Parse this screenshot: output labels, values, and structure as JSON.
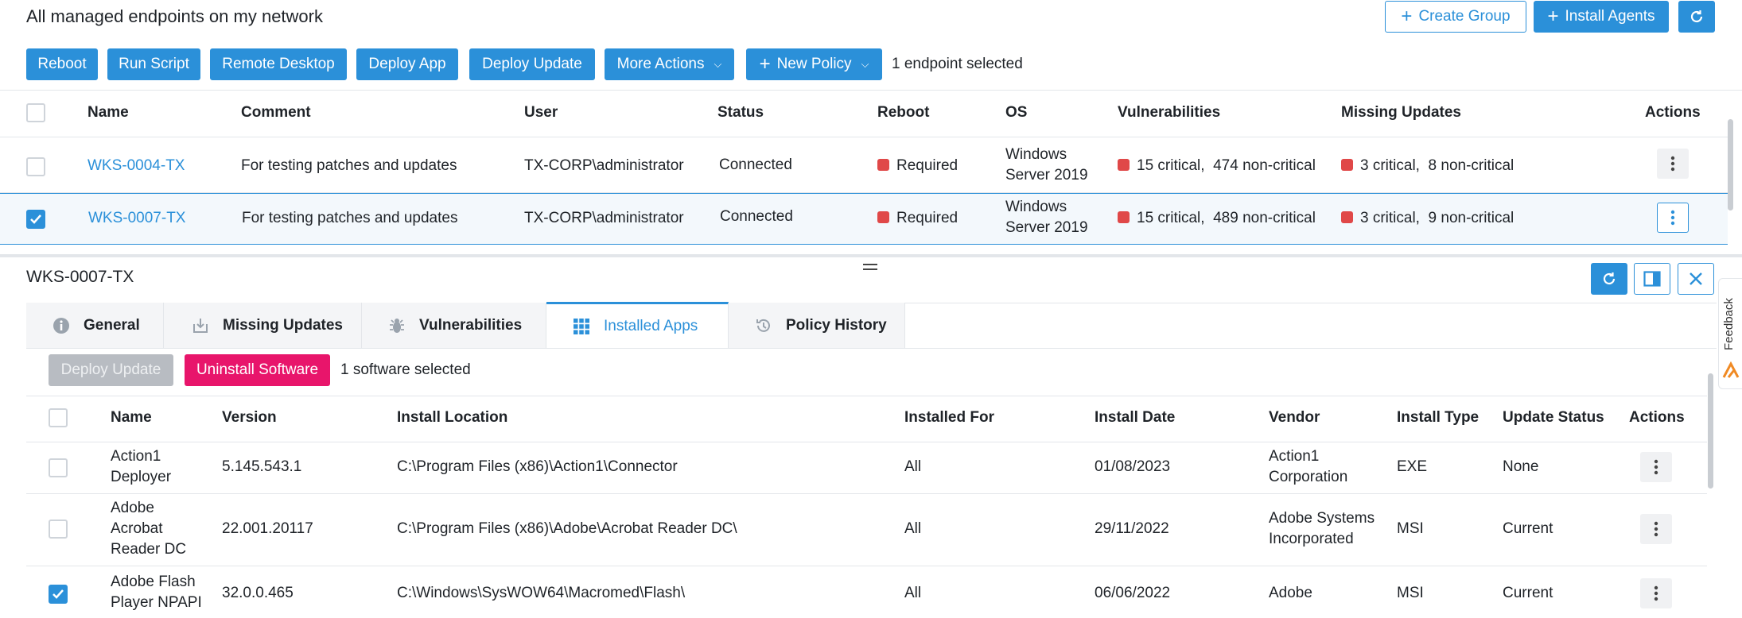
{
  "page": {
    "title": "All managed endpoints on my network",
    "create_group": "Create Group",
    "install_agents": "Install Agents"
  },
  "toolbar": {
    "reboot": "Reboot",
    "run_script": "Run Script",
    "remote_desktop": "Remote Desktop",
    "deploy_app": "Deploy App",
    "deploy_update": "Deploy Update",
    "more_actions": "More Actions",
    "new_policy": "New Policy",
    "selection": "1 endpoint selected"
  },
  "endpoints": {
    "columns": [
      "Name",
      "Comment",
      "User",
      "Status",
      "Reboot",
      "OS",
      "Vulnerabilities",
      "Missing Updates",
      "Actions"
    ],
    "rows": [
      {
        "name": "WKS-0004-TX",
        "comment": "For testing patches and updates",
        "user": "TX-CORP\\administrator",
        "status": "Connected",
        "reboot": "Required",
        "os_line1": "Windows",
        "os_line2": "Server 2019",
        "vuln_critical": "15 critical,",
        "vuln_noncritical": "474 non-critical",
        "upd_critical": "3 critical,",
        "upd_noncritical": "8 non-critical",
        "selected": false
      },
      {
        "name": "WKS-0007-TX",
        "comment": "For testing patches and updates",
        "user": "TX-CORP\\administrator",
        "status": "Connected",
        "reboot": "Required",
        "os_line1": "Windows",
        "os_line2": "Server 2019",
        "vuln_critical": "15 critical,",
        "vuln_noncritical": "489 non-critical",
        "upd_critical": "3 critical,",
        "upd_noncritical": "9 non-critical",
        "selected": true
      }
    ]
  },
  "detail": {
    "title": "WKS-0007-TX",
    "tabs": [
      {
        "label": "General",
        "icon": "info-icon"
      },
      {
        "label": "Missing Updates",
        "icon": "download-icon"
      },
      {
        "label": "Vulnerabilities",
        "icon": "bug-icon"
      },
      {
        "label": "Installed Apps",
        "icon": "grid-icon"
      },
      {
        "label": "Policy History",
        "icon": "history-icon"
      }
    ],
    "deploy_update": "Deploy Update",
    "uninstall": "Uninstall Software",
    "selection": "1 software selected",
    "feedback": "Feedback"
  },
  "apps": {
    "columns": [
      "Name",
      "Version",
      "Install Location",
      "Installed For",
      "Install Date",
      "Vendor",
      "Install Type",
      "Update Status",
      "Actions"
    ],
    "rows": [
      {
        "name_lines": [
          "Action1",
          "Deployer"
        ],
        "version": "5.145.543.1",
        "location": "C:\\Program Files (x86)\\Action1\\Connector",
        "installed_for": "All",
        "date": "01/08/2023",
        "vendor_lines": [
          "Action1",
          "Corporation"
        ],
        "type": "EXE",
        "update_status": "None",
        "selected": false
      },
      {
        "name_lines": [
          "Adobe",
          "Acrobat",
          "Reader DC"
        ],
        "version": "22.001.20117",
        "location": "C:\\Program Files (x86)\\Adobe\\Acrobat Reader DC\\",
        "installed_for": "All",
        "date": "29/11/2022",
        "vendor_lines": [
          "Adobe Systems",
          "Incorporated"
        ],
        "type": "MSI",
        "update_status": "Current",
        "selected": false
      },
      {
        "name_lines": [
          "Adobe Flash",
          "Player NPAPI"
        ],
        "version": "32.0.0.465",
        "location": "C:\\Windows\\SysWOW64\\Macromed\\Flash\\",
        "installed_for": "All",
        "date": "06/06/2022",
        "vendor_lines": [
          "Adobe"
        ],
        "type": "MSI",
        "update_status": "Current",
        "selected": true
      }
    ]
  },
  "colors": {
    "accent": "#2b90d9",
    "danger": "#e8156b",
    "critical": "#e04848"
  }
}
